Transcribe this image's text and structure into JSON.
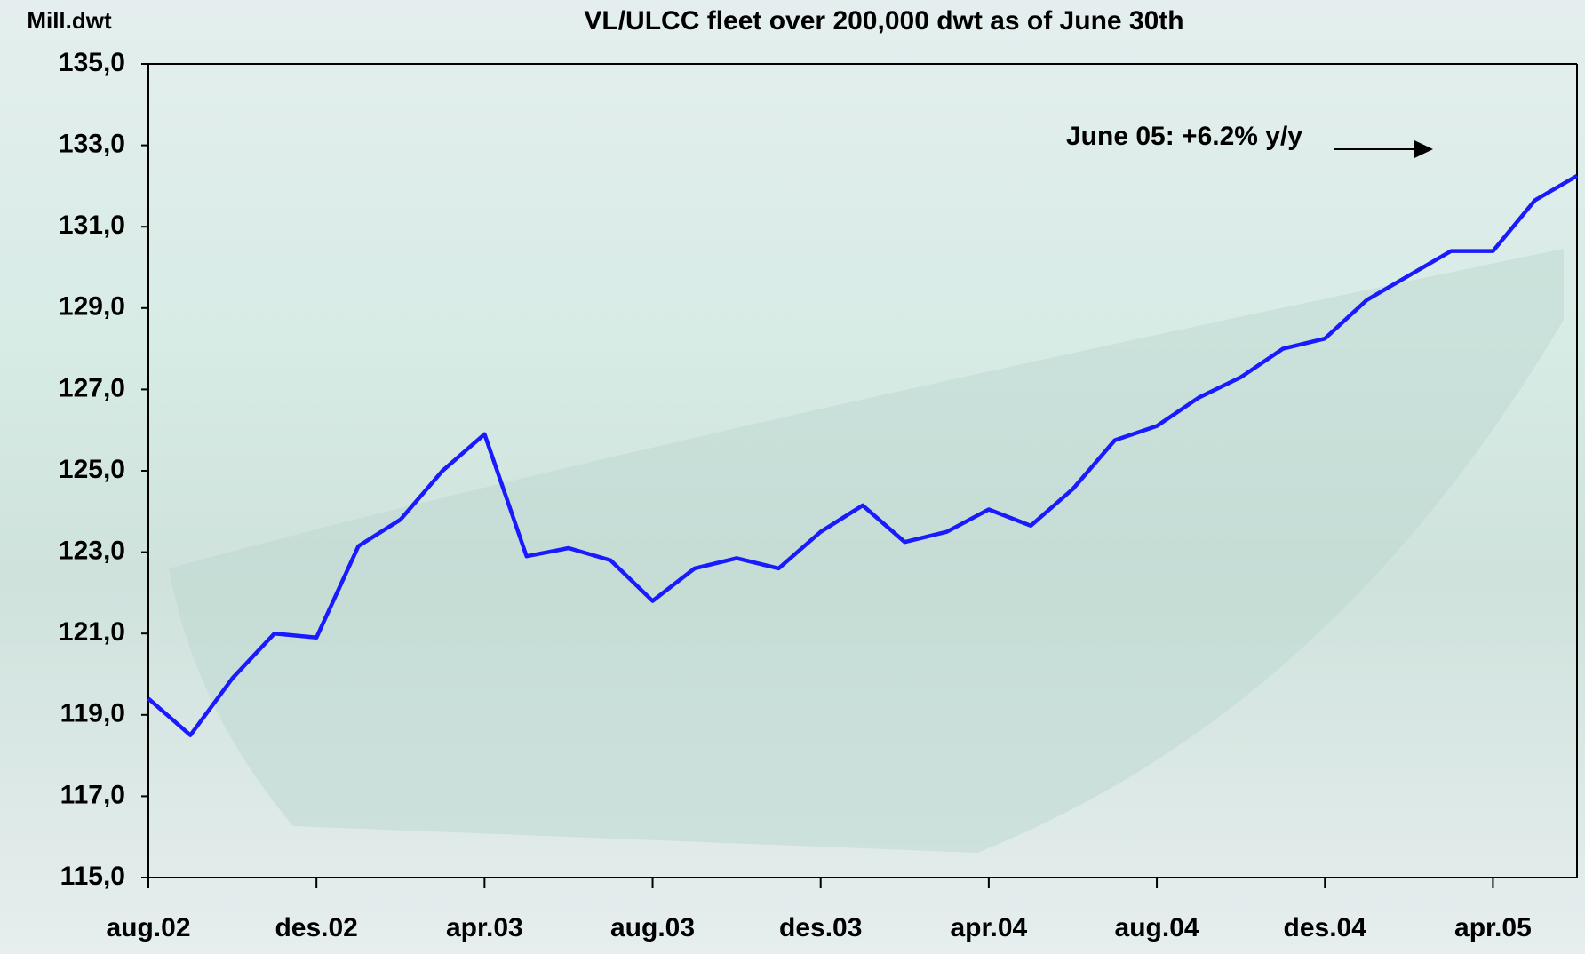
{
  "chart_data": {
    "type": "line",
    "title": "VL/ULCC fleet over 200,000 dwt as of June 30th",
    "y_axis_label": "Mill.dwt",
    "annotation": "June 05: +6.2% y/y",
    "categories": [
      "aug.02",
      null,
      null,
      null,
      "des.02",
      null,
      null,
      null,
      "apr.03",
      null,
      null,
      null,
      "aug.03",
      null,
      null,
      null,
      "des.03",
      null,
      null,
      null,
      "apr.04",
      null,
      null,
      null,
      "aug.04",
      null,
      null,
      null,
      "des.04",
      null,
      null,
      null,
      "apr.05",
      null,
      null
    ],
    "series": [
      {
        "name": "VL/ULCC fleet",
        "color": "#1a1aff",
        "values": [
          119.4,
          118.5,
          119.9,
          121.0,
          120.9,
          123.15,
          123.8,
          125.0,
          125.9,
          122.9,
          123.1,
          122.8,
          121.8,
          122.6,
          122.85,
          122.6,
          123.5,
          124.15,
          123.25,
          123.5,
          124.05,
          123.65,
          124.55,
          125.75,
          126.1,
          126.8,
          127.3,
          128.0,
          128.25,
          129.2,
          129.8,
          130.4,
          130.4,
          131.65,
          132.25
        ]
      }
    ],
    "ylim": [
      115,
      135
    ],
    "yticks": [
      {
        "value": 115,
        "label": "115,0"
      },
      {
        "value": 117,
        "label": "117,0"
      },
      {
        "value": 119,
        "label": "119,0"
      },
      {
        "value": 121,
        "label": "121,0"
      },
      {
        "value": 123,
        "label": "123,0"
      },
      {
        "value": 125,
        "label": "125,0"
      },
      {
        "value": 127,
        "label": "127,0"
      },
      {
        "value": 129,
        "label": "129,0"
      },
      {
        "value": 131,
        "label": "131,0"
      },
      {
        "value": 133,
        "label": "133,0"
      },
      {
        "value": 135,
        "label": "135,0"
      }
    ]
  }
}
